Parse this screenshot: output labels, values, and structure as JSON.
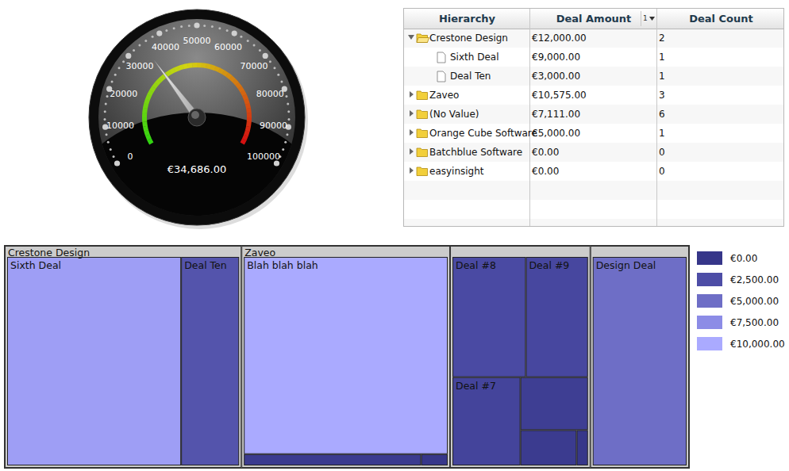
{
  "chart_data": [
    {
      "type": "gauge",
      "values": [
        34686
      ],
      "value_labels": [
        "€34,686.00"
      ],
      "ylim": [
        0,
        100000
      ],
      "yticks": [
        0,
        10000,
        20000,
        30000,
        40000,
        50000,
        60000,
        70000,
        80000,
        90000,
        100000
      ]
    },
    {
      "type": "treemap",
      "groups": [
        {
          "name": "Crestone Design",
          "labels": [
            "Sixth Deal",
            "Deal Ten"
          ],
          "values": [
            9000,
            3000
          ]
        },
        {
          "name": "Zaveo",
          "labels": [
            "Blah blah blah",
            null,
            null
          ],
          "values": [
            10000,
            500,
            75
          ]
        },
        {
          "name": null,
          "labels": [
            "Deal #8",
            "Deal #9",
            "Deal #7",
            null,
            null,
            null
          ],
          "values": [
            2220,
            1880,
            1510,
            900,
            500,
            101
          ]
        },
        {
          "name": null,
          "labels": [
            "Design Deal"
          ],
          "values": [
            5000
          ]
        }
      ],
      "color_scale": {
        "values": [
          0,
          2500,
          5000,
          7500,
          10000
        ],
        "labels": [
          "€0.00",
          "€2,500.00",
          "€5,000.00",
          "€7,500.00",
          "€10,000.00"
        ],
        "colors": [
          "#363689",
          "#4d4da6",
          "#6e6ec6",
          "#8c8ce6",
          "#aaaaff"
        ]
      },
      "legend": "right"
    }
  ],
  "table": {
    "columns": [
      "Hierarchy",
      "Deal Amount",
      "Deal Count"
    ],
    "sort_indicator": "1",
    "rows": [
      {
        "label": "Crestone Design",
        "amount": "€12,000.00",
        "count": 2,
        "expanded": true,
        "children": [
          {
            "label": "Sixth Deal",
            "amount": "€9,000.00",
            "count": 1
          },
          {
            "label": "Deal Ten",
            "amount": "€3,000.00",
            "count": 1
          }
        ]
      },
      {
        "label": "Zaveo",
        "amount": "€10,575.00",
        "count": 3,
        "expanded": false
      },
      {
        "label": "(No Value)",
        "amount": "€7,111.00",
        "count": 6,
        "expanded": false
      },
      {
        "label": "Orange Cube Software",
        "amount": "€5,000.00",
        "count": 1,
        "expanded": false
      },
      {
        "label": "Batchblue Software",
        "amount": "€0.00",
        "count": 0,
        "expanded": false
      },
      {
        "label": "easyinsight",
        "amount": "€0.00",
        "count": 0,
        "expanded": false
      }
    ]
  }
}
